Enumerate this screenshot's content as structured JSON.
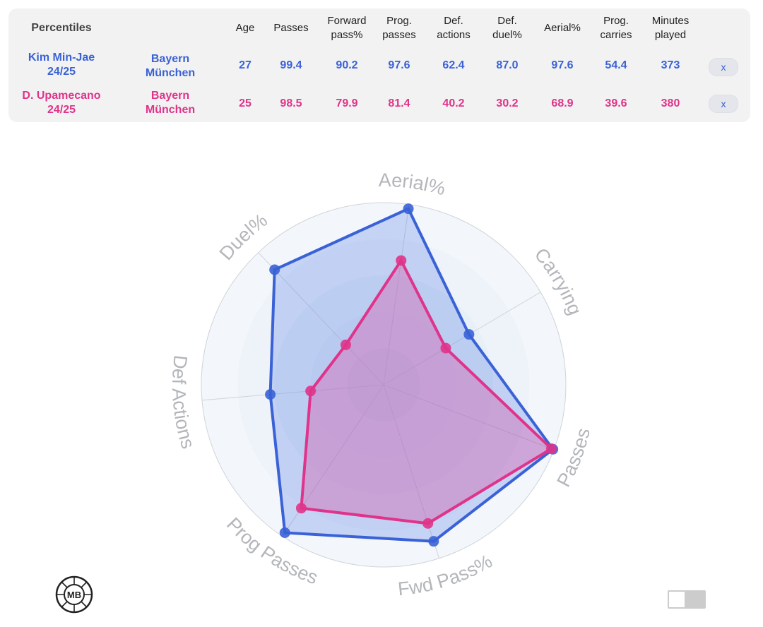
{
  "table": {
    "title": "Percentiles",
    "headers": [
      {
        "key": "age",
        "lines": [
          "Age"
        ]
      },
      {
        "key": "passes",
        "lines": [
          "Passes"
        ]
      },
      {
        "key": "fwd",
        "lines": [
          "Forward",
          "pass%"
        ]
      },
      {
        "key": "prog",
        "lines": [
          "Prog.",
          "passes"
        ]
      },
      {
        "key": "defact",
        "lines": [
          "Def.",
          "actions"
        ]
      },
      {
        "key": "defduel",
        "lines": [
          "Def.",
          "duel%"
        ]
      },
      {
        "key": "aerial",
        "lines": [
          "Aerial%"
        ]
      },
      {
        "key": "carries",
        "lines": [
          "Prog.",
          "carries"
        ]
      },
      {
        "key": "minutes",
        "lines": [
          "Minutes",
          "played"
        ]
      }
    ],
    "players": [
      {
        "name": [
          "Kim Min-Jae",
          "24/25"
        ],
        "team": [
          "Bayern",
          "München"
        ],
        "values": [
          "27",
          "99.4",
          "90.2",
          "97.6",
          "62.4",
          "87.0",
          "97.6",
          "54.4",
          "373"
        ],
        "color": "#3a62d6",
        "remove_label": "x"
      },
      {
        "name": [
          "D. Upamecano",
          "24/25"
        ],
        "team": [
          "Bayern",
          "München"
        ],
        "values": [
          "25",
          "98.5",
          "79.9",
          "81.4",
          "40.2",
          "30.2",
          "68.9",
          "39.6",
          "380"
        ],
        "color": "#e0338a",
        "remove_label": "x"
      }
    ]
  },
  "chart_data": {
    "type": "radar",
    "axes": [
      "Aerial%",
      "Carrying",
      "Passes",
      "Fwd Pass%",
      "Prog Passes",
      "Def Actions",
      "Duel%"
    ],
    "range": [
      0,
      100
    ],
    "series": [
      {
        "name": "Kim Min-Jae 24/25",
        "values": [
          97.6,
          54.4,
          99.4,
          90.2,
          97.6,
          62.4,
          87.0
        ],
        "color": "#3a62d6",
        "fill": "rgba(80,120,230,0.28)"
      },
      {
        "name": "D. Upamecano 24/25",
        "values": [
          68.9,
          39.6,
          98.5,
          79.9,
          81.4,
          40.2,
          30.2
        ],
        "color": "#e0338a",
        "fill": "rgba(225,60,150,0.30)"
      }
    ]
  },
  "logo_text": "MB"
}
